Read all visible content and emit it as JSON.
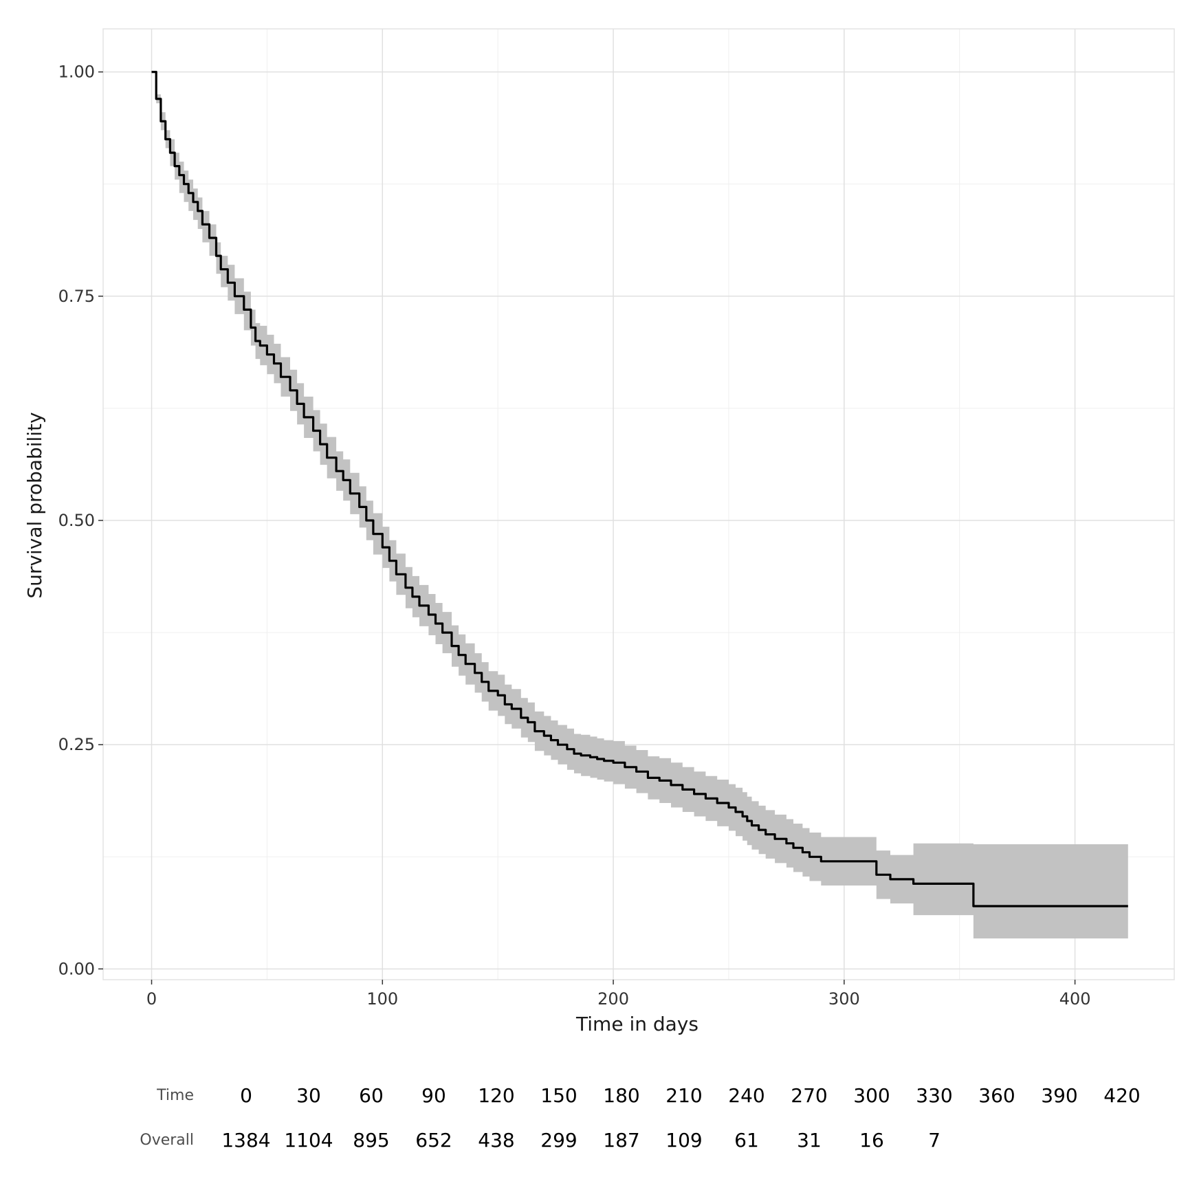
{
  "chart_data": {
    "type": "line",
    "xlabel": "Time in days",
    "ylabel": "Survival probability",
    "xlim": [
      -21,
      443
    ],
    "ylim": [
      -0.012,
      1.048
    ],
    "x_ticks": [
      0,
      100,
      200,
      300,
      400
    ],
    "x_tick_labels": [
      "0",
      "100",
      "200",
      "300",
      "400"
    ],
    "x_minor_ticks": [
      50,
      150,
      250,
      350
    ],
    "y_ticks": [
      0,
      0.25,
      0.5,
      0.75,
      1.0
    ],
    "y_tick_labels": [
      "0.00",
      "0.25",
      "0.50",
      "0.75",
      "1.00"
    ],
    "y_minor_ticks": [
      0.125,
      0.375,
      0.625,
      0.875
    ],
    "grid": true,
    "legend": "none",
    "colors": {
      "line": "#000000",
      "ci_band": "#c2c2c2",
      "grid_major": "#e0e0e0",
      "grid_minor": "#efefef",
      "border": "#e3e3e3"
    },
    "series": [
      {
        "step": true,
        "x": [
          0,
          2,
          4,
          6,
          8,
          10,
          12,
          14,
          16,
          18,
          20,
          22,
          25,
          28,
          30,
          33,
          36,
          40,
          43,
          45,
          47,
          50,
          53,
          56,
          60,
          63,
          66,
          70,
          73,
          76,
          80,
          83,
          86,
          90,
          93,
          96,
          100,
          103,
          106,
          110,
          113,
          116,
          120,
          123,
          126,
          130,
          133,
          136,
          140,
          143,
          146,
          150,
          153,
          156,
          160,
          163,
          166,
          170,
          173,
          176,
          180,
          183,
          186,
          190,
          193,
          196,
          200,
          205,
          210,
          215,
          220,
          225,
          230,
          235,
          240,
          245,
          250,
          253,
          256,
          258,
          260,
          263,
          266,
          270,
          275,
          278,
          282,
          285,
          290,
          300,
          313,
          314,
          320,
          330,
          340,
          355,
          356,
          390,
          423
        ],
        "y": [
          1.0,
          0.97,
          0.945,
          0.925,
          0.91,
          0.895,
          0.885,
          0.875,
          0.865,
          0.855,
          0.845,
          0.83,
          0.815,
          0.795,
          0.78,
          0.765,
          0.75,
          0.735,
          0.715,
          0.7,
          0.695,
          0.685,
          0.675,
          0.66,
          0.645,
          0.63,
          0.615,
          0.6,
          0.585,
          0.57,
          0.555,
          0.545,
          0.53,
          0.515,
          0.5,
          0.485,
          0.47,
          0.455,
          0.44,
          0.425,
          0.415,
          0.405,
          0.395,
          0.385,
          0.375,
          0.36,
          0.35,
          0.34,
          0.33,
          0.32,
          0.31,
          0.305,
          0.295,
          0.29,
          0.28,
          0.275,
          0.265,
          0.26,
          0.255,
          0.25,
          0.245,
          0.24,
          0.238,
          0.236,
          0.234,
          0.232,
          0.23,
          0.225,
          0.22,
          0.213,
          0.21,
          0.205,
          0.2,
          0.195,
          0.19,
          0.185,
          0.18,
          0.175,
          0.17,
          0.165,
          0.16,
          0.155,
          0.15,
          0.145,
          0.14,
          0.135,
          0.13,
          0.125,
          0.12,
          0.12,
          0.12,
          0.105,
          0.1,
          0.095,
          0.095,
          0.095,
          0.07,
          0.07,
          0.07
        ],
        "lower": [
          1.0,
          0.965,
          0.935,
          0.915,
          0.895,
          0.88,
          0.865,
          0.855,
          0.845,
          0.835,
          0.825,
          0.81,
          0.795,
          0.775,
          0.76,
          0.745,
          0.73,
          0.712,
          0.695,
          0.68,
          0.673,
          0.663,
          0.653,
          0.638,
          0.622,
          0.607,
          0.592,
          0.577,
          0.562,
          0.547,
          0.533,
          0.522,
          0.507,
          0.492,
          0.478,
          0.462,
          0.447,
          0.432,
          0.417,
          0.402,
          0.392,
          0.382,
          0.372,
          0.362,
          0.352,
          0.337,
          0.327,
          0.317,
          0.308,
          0.298,
          0.288,
          0.282,
          0.273,
          0.268,
          0.258,
          0.253,
          0.243,
          0.238,
          0.233,
          0.228,
          0.222,
          0.218,
          0.215,
          0.213,
          0.211,
          0.209,
          0.206,
          0.201,
          0.196,
          0.189,
          0.185,
          0.18,
          0.175,
          0.17,
          0.165,
          0.159,
          0.154,
          0.148,
          0.143,
          0.138,
          0.133,
          0.128,
          0.123,
          0.118,
          0.113,
          0.108,
          0.103,
          0.098,
          0.093,
          0.093,
          0.093,
          0.078,
          0.073,
          0.06,
          0.06,
          0.06,
          0.034,
          0.034,
          0.034
        ],
        "upper": [
          1.0,
          0.975,
          0.955,
          0.935,
          0.925,
          0.91,
          0.9,
          0.89,
          0.88,
          0.87,
          0.86,
          0.845,
          0.83,
          0.81,
          0.795,
          0.785,
          0.77,
          0.755,
          0.735,
          0.72,
          0.717,
          0.707,
          0.697,
          0.682,
          0.668,
          0.653,
          0.638,
          0.623,
          0.608,
          0.593,
          0.577,
          0.568,
          0.553,
          0.538,
          0.522,
          0.508,
          0.493,
          0.478,
          0.463,
          0.448,
          0.438,
          0.428,
          0.418,
          0.408,
          0.398,
          0.383,
          0.373,
          0.363,
          0.352,
          0.342,
          0.332,
          0.328,
          0.317,
          0.312,
          0.302,
          0.297,
          0.287,
          0.282,
          0.277,
          0.272,
          0.268,
          0.262,
          0.261,
          0.259,
          0.257,
          0.255,
          0.254,
          0.249,
          0.244,
          0.237,
          0.235,
          0.23,
          0.225,
          0.22,
          0.215,
          0.211,
          0.206,
          0.202,
          0.197,
          0.192,
          0.187,
          0.182,
          0.177,
          0.172,
          0.167,
          0.162,
          0.157,
          0.152,
          0.147,
          0.147,
          0.147,
          0.132,
          0.127,
          0.14,
          0.14,
          0.14,
          0.139,
          0.139,
          0.139
        ]
      }
    ],
    "risk_table": {
      "header_label": "Time",
      "row_label": "Overall",
      "times": [
        "0",
        "30",
        "60",
        "90",
        "120",
        "150",
        "180",
        "210",
        "240",
        "270",
        "300",
        "330",
        "360",
        "390",
        "420"
      ],
      "counts": [
        "1384",
        "1104",
        "895",
        "652",
        "438",
        "299",
        "187",
        "109",
        "61",
        "31",
        "16",
        "7",
        "",
        "",
        ""
      ]
    }
  }
}
